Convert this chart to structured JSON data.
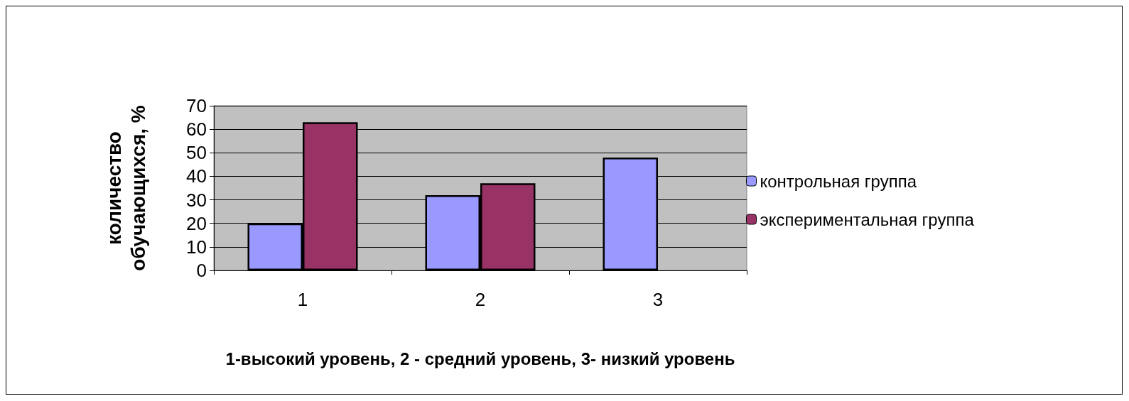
{
  "chart_data": {
    "type": "bar",
    "xlabel": "1-высокий уровень, 2 - средний уровень, 3- низкий уровень",
    "ylabel": "количество\nобучающихся, %",
    "categories": [
      "1",
      "2",
      "3"
    ],
    "series": [
      {
        "name": "контрольная группа",
        "color": "#9999ff",
        "values": [
          20,
          32,
          48
        ]
      },
      {
        "name": "экспериментальная группа",
        "color": "#993366",
        "values": [
          63,
          37,
          null
        ]
      }
    ],
    "ylim": [
      0,
      70
    ],
    "yticks": [
      0,
      10,
      20,
      30,
      40,
      50,
      60,
      70
    ],
    "grid": "y",
    "legend": "right"
  }
}
